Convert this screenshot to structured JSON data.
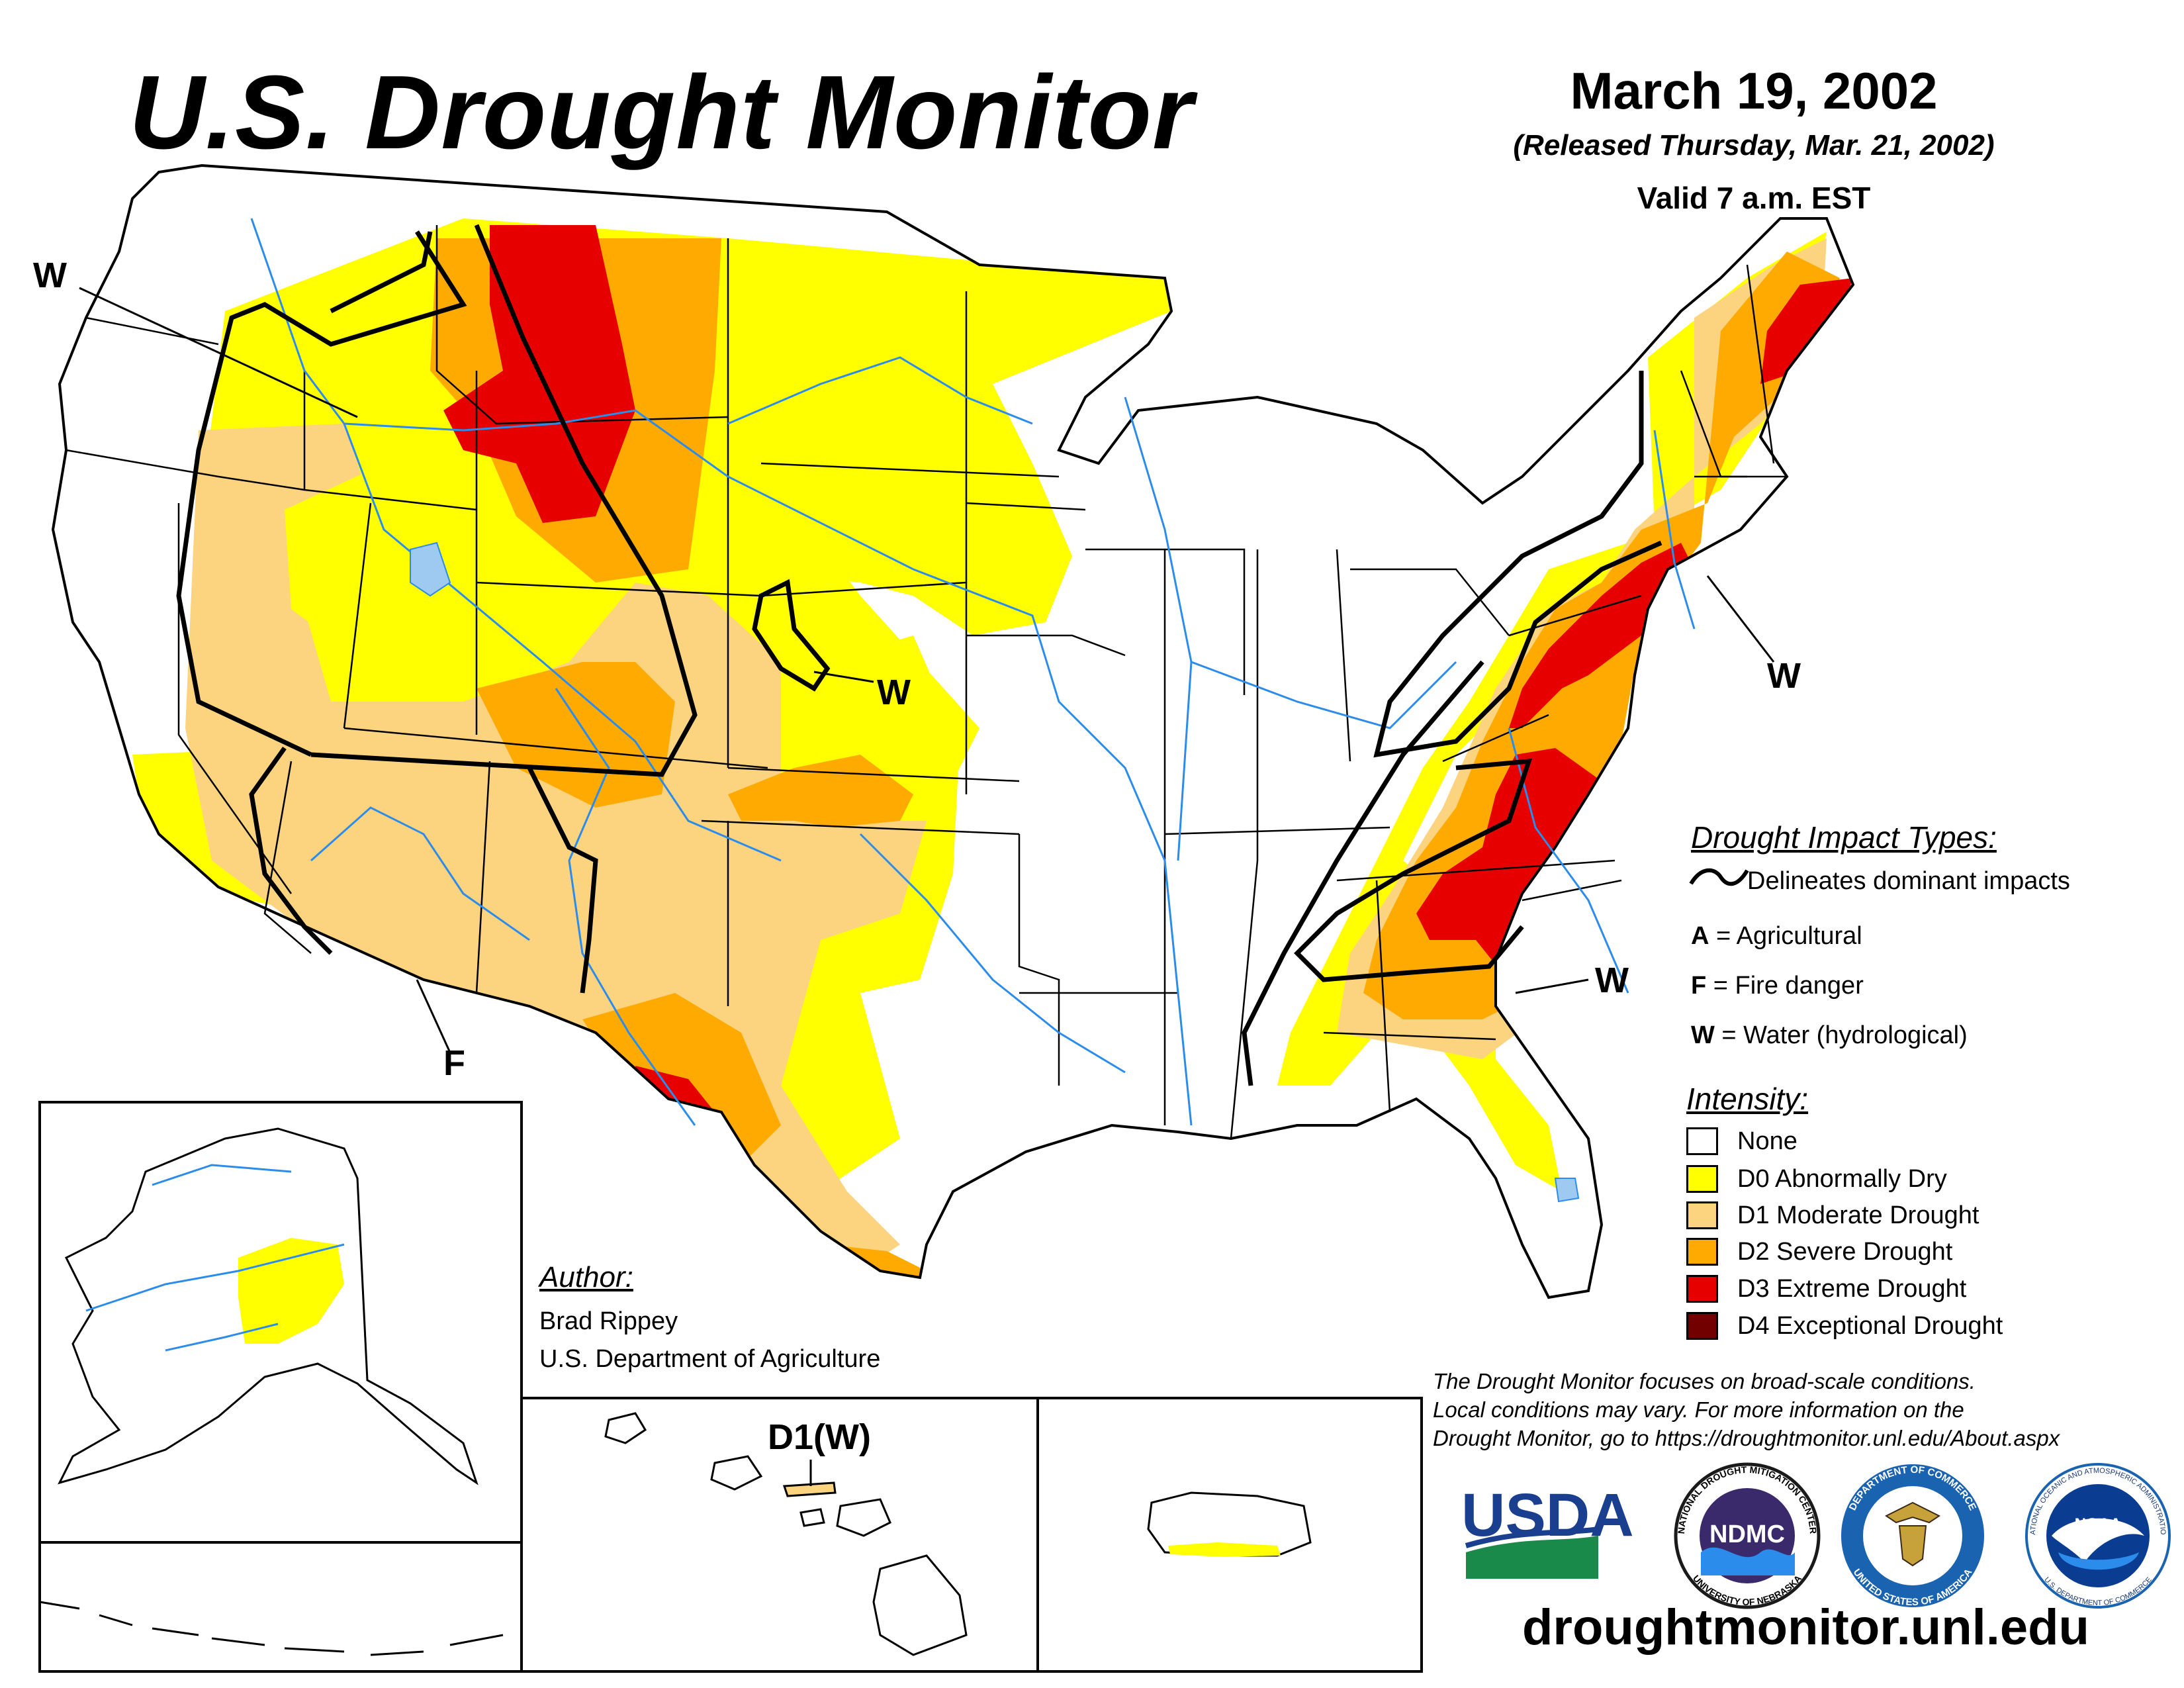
{
  "header": {
    "title": "U.S. Drought Monitor",
    "date": "March 19, 2002",
    "released": "(Released Thursday, Mar. 21, 2002)",
    "valid": "Valid 7 a.m. EST"
  },
  "map_labels": {
    "w_northwest": "W",
    "w_plains": "W",
    "w_northeast": "W",
    "w_southeast": "W",
    "f_southwest": "F",
    "hawaii_label": "D1(W)"
  },
  "impact_legend": {
    "heading": "Drought Impact Types:",
    "delineates": "Delineates dominant impacts",
    "items": [
      {
        "letter": "A",
        "text": " = Agricultural"
      },
      {
        "letter": "F",
        "text": " = Fire danger"
      },
      {
        "letter": "W",
        "text": " = Water (hydrological)"
      }
    ]
  },
  "intensity_legend": {
    "heading": "Intensity:",
    "items": [
      {
        "label": "None",
        "color": "#ffffff"
      },
      {
        "label": "D0 Abnormally Dry",
        "color": "#ffff00"
      },
      {
        "label": "D1 Moderate Drought",
        "color": "#fcd37f"
      },
      {
        "label": "D2 Severe Drought",
        "color": "#ffaa00"
      },
      {
        "label": "D3 Extreme Drought",
        "color": "#e60000"
      },
      {
        "label": "D4 Exceptional Drought",
        "color": "#730000"
      }
    ]
  },
  "author": {
    "heading": "Author:",
    "name": "Brad Rippey",
    "org": "U.S. Department of Agriculture"
  },
  "disclaimer": {
    "line1": "The Drought Monitor focuses on broad-scale conditions.",
    "line2": "Local conditions may vary. For more information on the",
    "line3": "Drought Monitor, go to https://droughtmonitor.unl.edu/About.aspx"
  },
  "logos": {
    "usda": "USDA",
    "ndmc": "NDMC",
    "ndmc_ring_top": "NATIONAL DROUGHT MITIGATION CENTER",
    "ndmc_ring_bottom": "UNIVERSITY OF NEBRASKA",
    "commerce_ring_top": "DEPARTMENT OF COMMERCE",
    "commerce_ring_bottom": "UNITED STATES OF AMERICA",
    "noaa": "NOAA",
    "noaa_ring": "NATIONAL OCEANIC AND ATMOSPHERIC ADMINISTRATION",
    "noaa_ring_bottom": "U.S. DEPARTMENT OF COMMERCE"
  },
  "footer": {
    "url": "droughtmonitor.unl.edu"
  },
  "colors": {
    "d0": "#ffff00",
    "d1": "#fcd37f",
    "d2": "#ffaa00",
    "d3": "#e60000",
    "d4": "#730000",
    "water": "#2b8ceb",
    "lake": "#9ec9f0"
  }
}
